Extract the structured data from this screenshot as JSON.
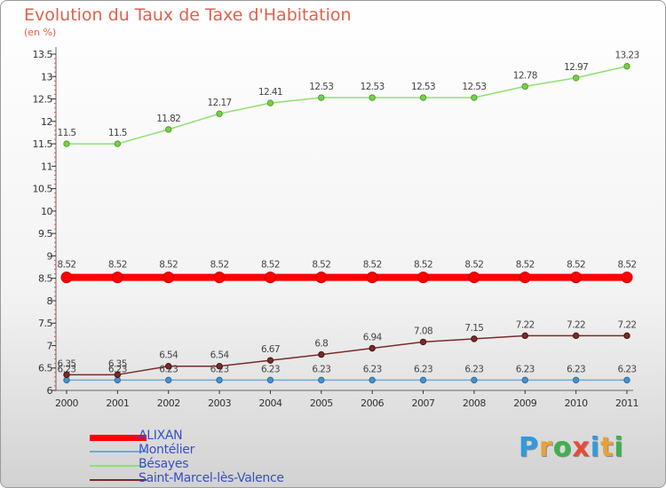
{
  "chart_data": {
    "type": "line",
    "title": "Evolution du Taux de Taxe d'Habitation",
    "unit": "(en %)",
    "xlabel": "",
    "ylabel": "",
    "x": [
      "2000",
      "2001",
      "2002",
      "2003",
      "2004",
      "2005",
      "2006",
      "2007",
      "2008",
      "2009",
      "2010",
      "2011"
    ],
    "ylim": [
      6,
      13.5
    ],
    "yticks": [
      6,
      6.5,
      7,
      7.5,
      8,
      8.5,
      9,
      9.5,
      10,
      10.5,
      11,
      11.5,
      12,
      12.5,
      13,
      13.5
    ],
    "ytick_labels": [
      "6",
      "6.5",
      "7",
      "7.5",
      "8",
      "8.5",
      "9",
      "9.5",
      "10",
      "10.5",
      "11",
      "11.5",
      "12",
      "12.5",
      "13",
      "13.5"
    ],
    "grid": false,
    "legend_position": "bottom-left",
    "series": [
      {
        "name": "ALIXAN",
        "color": "#ff0000",
        "values": [
          8.52,
          8.52,
          8.52,
          8.52,
          8.52,
          8.52,
          8.52,
          8.52,
          8.52,
          8.52,
          8.52,
          8.52
        ],
        "labels": [
          "8.52",
          "8.52",
          "8.52",
          "8.52",
          "8.52",
          "8.52",
          "8.52",
          "8.52",
          "8.52",
          "8.52",
          "8.52",
          "8.52"
        ]
      },
      {
        "name": "Montélier",
        "color": "#6fa8d6",
        "values": [
          6.23,
          6.23,
          6.23,
          6.23,
          6.23,
          6.23,
          6.23,
          6.23,
          6.23,
          6.23,
          6.23,
          6.23
        ],
        "labels": [
          "6.23",
          "6.23",
          "6.23",
          "6.23",
          "6.23",
          "6.23",
          "6.23",
          "6.23",
          "6.23",
          "6.23",
          "6.23",
          "6.23"
        ]
      },
      {
        "name": "Bésayes",
        "color": "#90e070",
        "values": [
          11.5,
          11.5,
          11.82,
          12.17,
          12.41,
          12.53,
          12.53,
          12.53,
          12.53,
          12.78,
          12.97,
          13.23
        ],
        "labels": [
          "11.5",
          "11.5",
          "11.82",
          "12.17",
          "12.41",
          "12.53",
          "12.53",
          "12.53",
          "12.53",
          "12.78",
          "12.97",
          "13.23"
        ]
      },
      {
        "name": "Saint-Marcel-lès-Valence",
        "color": "#7a2a2a",
        "values": [
          6.35,
          6.35,
          6.54,
          6.54,
          6.67,
          6.8,
          6.94,
          7.08,
          7.15,
          7.22,
          7.22,
          7.22
        ],
        "labels": [
          "6.35",
          "6.35",
          "6.54",
          "6.54",
          "6.67",
          "6.8",
          "6.94",
          "7.08",
          "7.15",
          "7.22",
          "7.22",
          "7.22"
        ]
      }
    ]
  },
  "brand": {
    "letters": [
      "P",
      "r",
      "o",
      "x",
      "i",
      "t",
      "i"
    ],
    "colors": [
      "#2e9be0",
      "#e8a23a",
      "#3cb34a",
      "#e84a3a",
      "#2e9be0",
      "#e8a23a",
      "#3cb34a"
    ]
  }
}
